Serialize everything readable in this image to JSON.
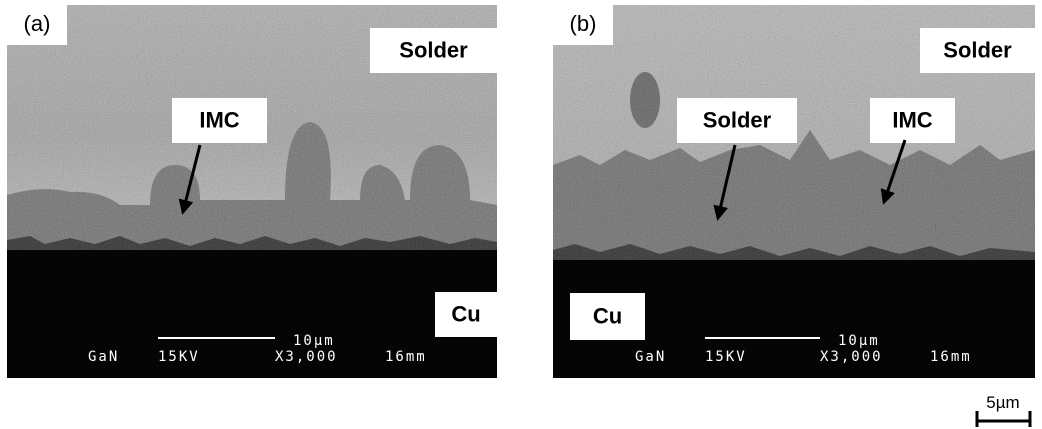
{
  "panels": [
    {
      "label": "(a)",
      "annotations": [
        "Solder",
        "IMC",
        "Cu"
      ],
      "scale_bar": "10µm",
      "info": [
        "GaN",
        "15KV",
        "X3,000",
        "16mm"
      ]
    },
    {
      "label": "(b)",
      "annotations": [
        "Solder",
        "Solder",
        "IMC",
        "Cu"
      ],
      "scale_bar": "10µm",
      "info": [
        "GaN",
        "15KV",
        "X3,000",
        "16mm"
      ]
    }
  ],
  "scale_bar": "5µm"
}
